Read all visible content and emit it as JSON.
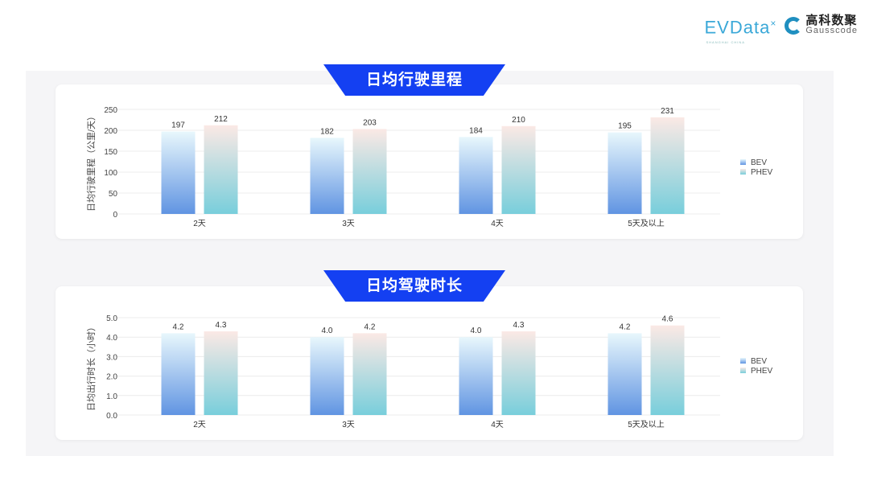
{
  "logos": {
    "evdata": "EVData",
    "evdata_sub": "SHANGHAI CHINA",
    "gauss_cn": "高科数聚",
    "gauss_en": "Gausscode"
  },
  "colors": {
    "banner": "#1440f2",
    "bev_top": "#e8f7fc",
    "bev_bottom": "#6094e2",
    "phev_top": "#fbe9e5",
    "phev_bottom": "#78cedb"
  },
  "chart_data": [
    {
      "type": "bar",
      "title": "日均行驶里程",
      "ylabel": "日均行驶里程（公里/天）",
      "categories": [
        "2天",
        "3天",
        "4天",
        "5天及以上"
      ],
      "series": [
        {
          "name": "BEV",
          "values": [
            197,
            182,
            184,
            195
          ]
        },
        {
          "name": "PHEV",
          "values": [
            212,
            203,
            210,
            231
          ]
        }
      ],
      "ylim": [
        0,
        250
      ],
      "yticks": [
        "0",
        "50",
        "100",
        "150",
        "200",
        "250"
      ],
      "grid": true,
      "legend": "right"
    },
    {
      "type": "bar",
      "title": "日均驾驶时长",
      "ylabel": "日均出行时长（小时）",
      "categories": [
        "2天",
        "3天",
        "4天",
        "5天及以上"
      ],
      "series": [
        {
          "name": "BEV",
          "values": [
            4.2,
            4.0,
            4.0,
            4.2
          ]
        },
        {
          "name": "PHEV",
          "values": [
            4.3,
            4.2,
            4.3,
            4.6
          ]
        }
      ],
      "ylim": [
        0,
        5
      ],
      "yticks": [
        "0.0",
        "1.0",
        "2.0",
        "3.0",
        "4.0",
        "5.0"
      ],
      "grid": true,
      "legend": "right"
    }
  ]
}
